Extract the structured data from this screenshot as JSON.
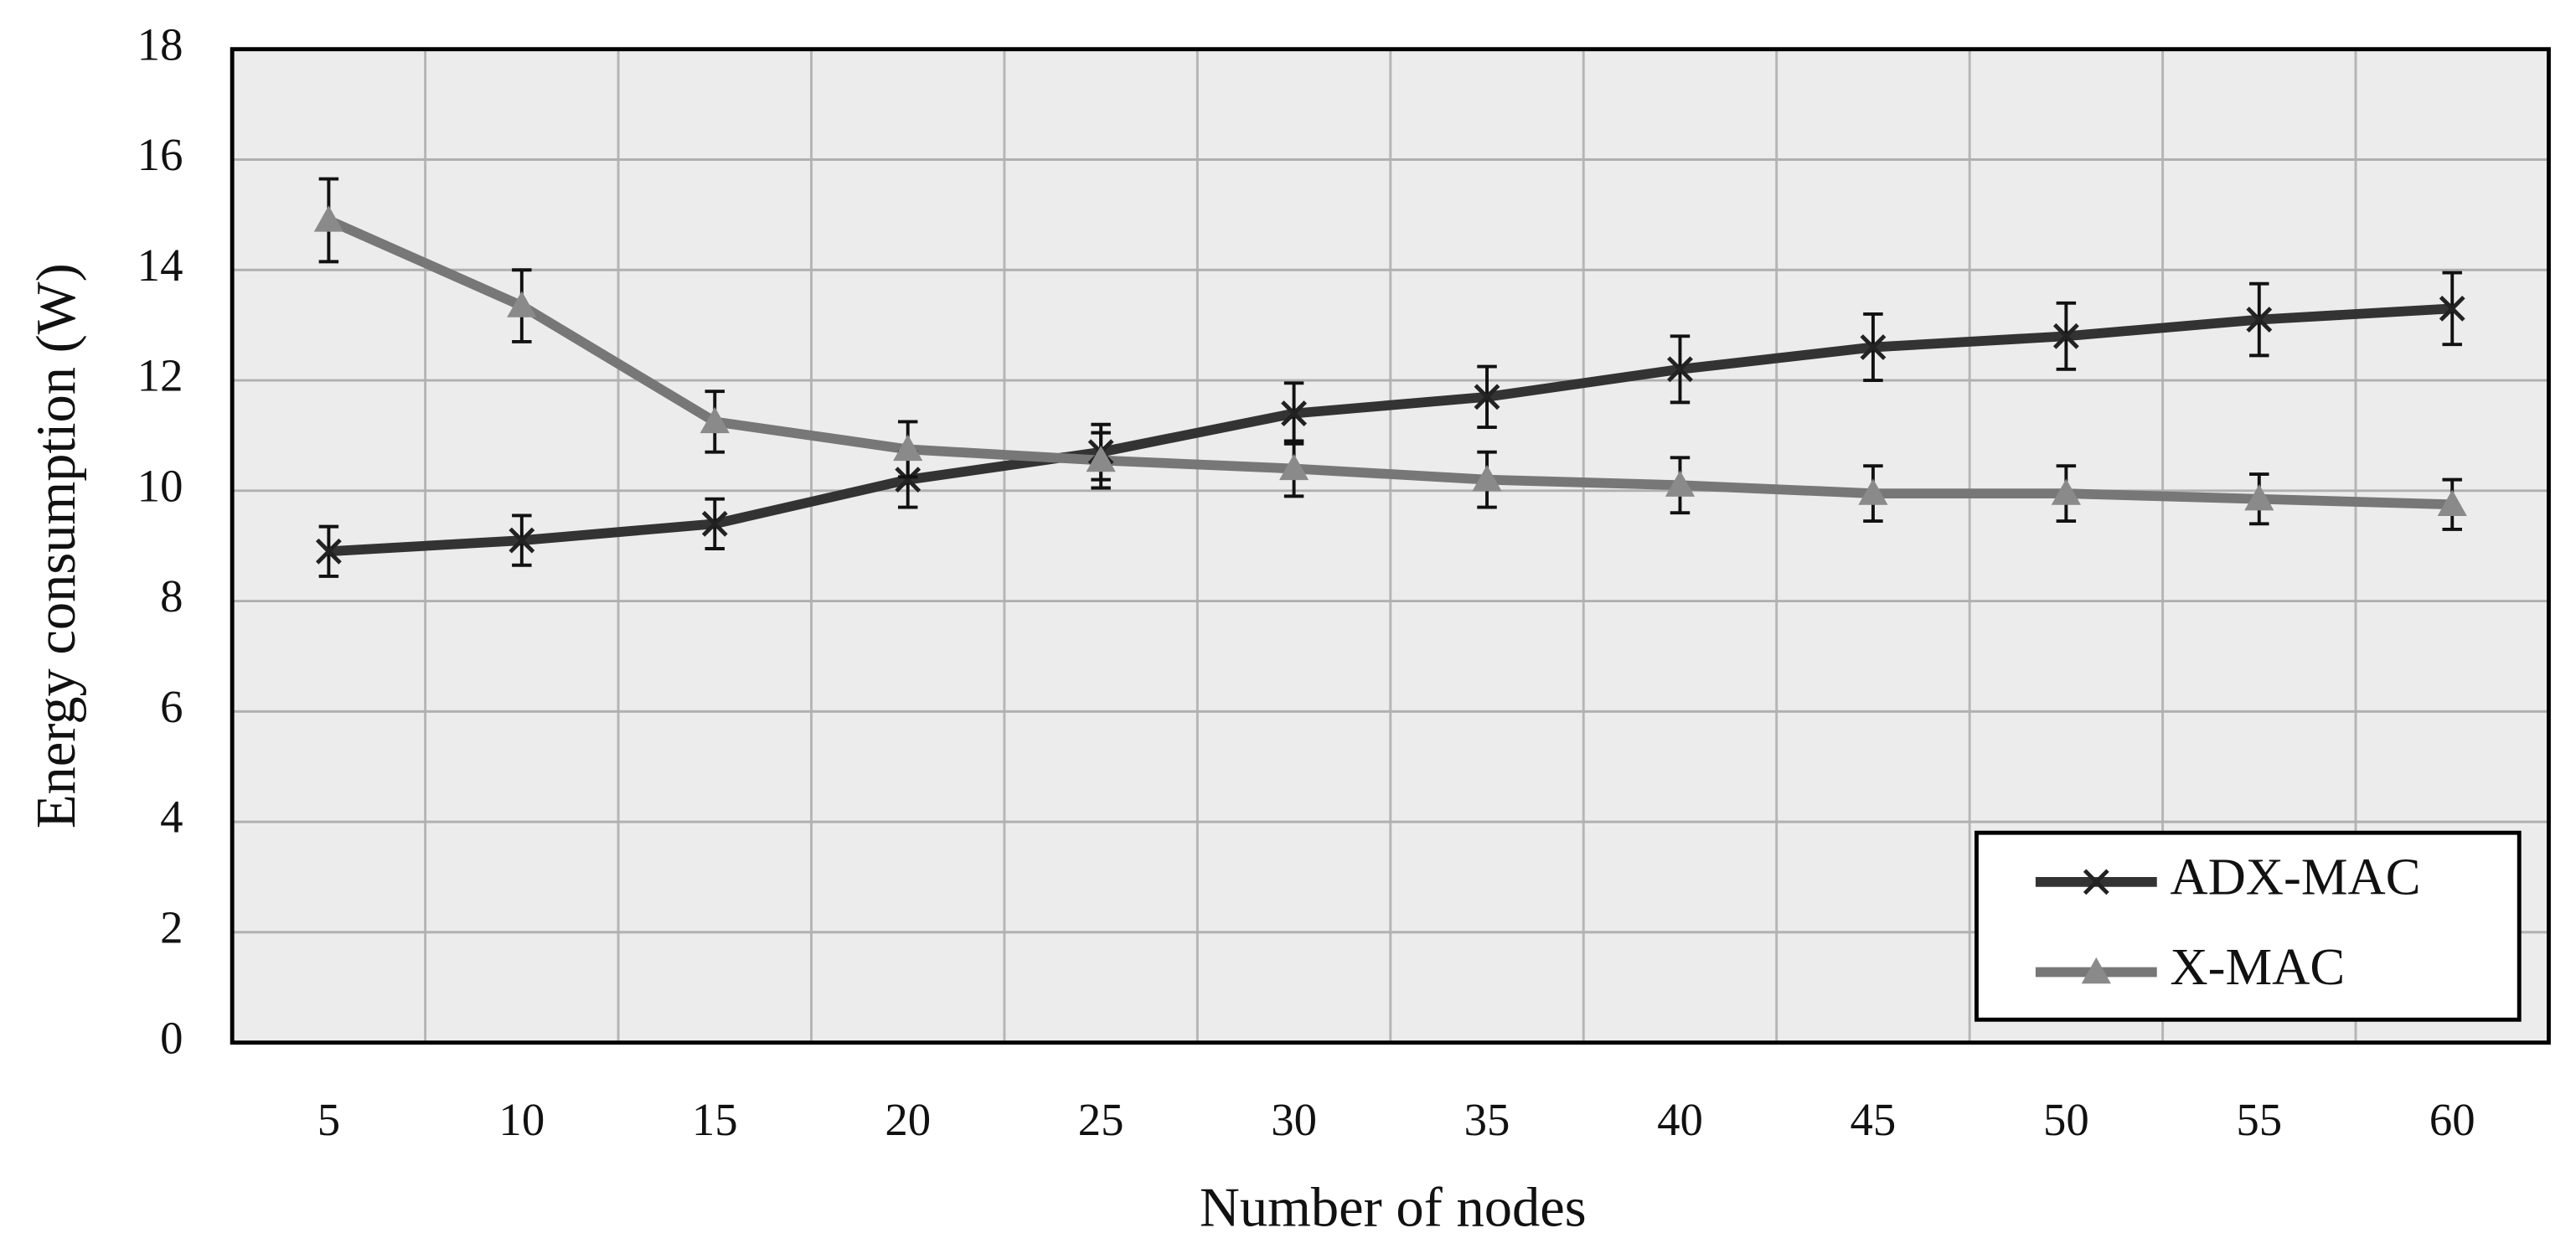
{
  "chart_data": {
    "type": "line",
    "x_label": "Number of nodes",
    "y_label": "Energy consumption (W)",
    "categories": [
      "5",
      "10",
      "15",
      "20",
      "25",
      "30",
      "35",
      "40",
      "45",
      "50",
      "55",
      "60"
    ],
    "series": [
      {
        "name": "ADX-MAC",
        "color": "#333333",
        "marker": "x",
        "values": [
          8.9,
          9.1,
          9.4,
          10.2,
          10.7,
          11.4,
          11.7,
          12.2,
          12.6,
          12.8,
          13.1,
          13.3
        ],
        "errors": [
          0.45,
          0.45,
          0.45,
          0.5,
          0.5,
          0.55,
          0.55,
          0.6,
          0.6,
          0.6,
          0.65,
          0.65
        ]
      },
      {
        "name": "X-MAC",
        "color": "#777777",
        "marker": "triangle",
        "values": [
          14.9,
          13.35,
          11.25,
          10.75,
          10.55,
          10.4,
          10.2,
          10.1,
          9.95,
          9.95,
          9.85,
          9.75
        ],
        "errors": [
          0.75,
          0.65,
          0.55,
          0.5,
          0.5,
          0.5,
          0.5,
          0.5,
          0.5,
          0.5,
          0.45,
          0.45
        ]
      }
    ],
    "ylim": [
      0,
      18
    ],
    "yticks": [
      0,
      2,
      4,
      6,
      8,
      10,
      12,
      14,
      16,
      18
    ],
    "grid": true,
    "legend": "lower right"
  }
}
